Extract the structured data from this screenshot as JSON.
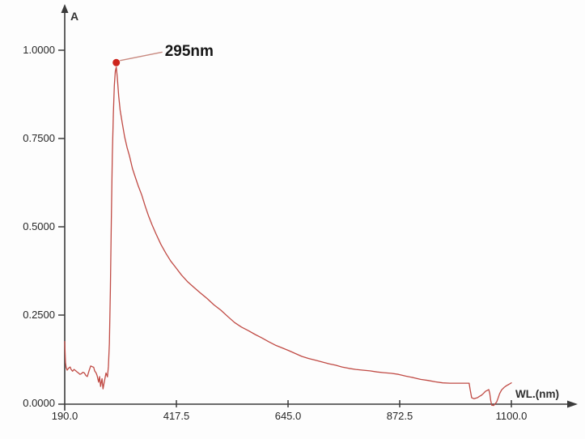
{
  "figure": {
    "background": "#fdfdfd",
    "colors": {
      "axis": "#3b3b3b",
      "tick_text": "#262626",
      "curve": "#c04a44",
      "marker": "#cd241c",
      "callout": "#c98a80"
    }
  },
  "chart_data": {
    "type": "line",
    "title": "",
    "xlabel": "WL.(nm)",
    "ylabel": "A",
    "xlim": [
      190.0,
      1100.0
    ],
    "ylim": [
      0.0,
      1.0
    ],
    "grid": false,
    "legend": false,
    "x_ticks": [
      {
        "wl": 190.0,
        "label": "190.0"
      },
      {
        "wl": 417.5,
        "label": "417.5"
      },
      {
        "wl": 645.0,
        "label": "645.0"
      },
      {
        "wl": 872.5,
        "label": "872.5"
      },
      {
        "wl": 1100.0,
        "label": "1100.0"
      }
    ],
    "y_ticks": [
      {
        "a": 0.0,
        "label": "0.0000"
      },
      {
        "a": 0.25,
        "label": "0.2500"
      },
      {
        "a": 0.5,
        "label": "0.5000"
      },
      {
        "a": 0.75,
        "label": "0.7500"
      },
      {
        "a": 1.0,
        "label": "1.0000"
      }
    ],
    "annotations": [
      {
        "text": "295nm",
        "wl": 295,
        "a": 0.965
      }
    ],
    "series": [
      {
        "name": "absorbance-trace",
        "points": [
          [
            190,
            0.175
          ],
          [
            191.5,
            0.115
          ],
          [
            193,
            0.101
          ],
          [
            195,
            0.094
          ],
          [
            198,
            0.1
          ],
          [
            201,
            0.103
          ],
          [
            203,
            0.096
          ],
          [
            206,
            0.091
          ],
          [
            209,
            0.096
          ],
          [
            212,
            0.093
          ],
          [
            215,
            0.089
          ],
          [
            218,
            0.086
          ],
          [
            221,
            0.082
          ],
          [
            224,
            0.084
          ],
          [
            227,
            0.088
          ],
          [
            230,
            0.086
          ],
          [
            233,
            0.079
          ],
          [
            236,
            0.076
          ],
          [
            238,
            0.085
          ],
          [
            240,
            0.094
          ],
          [
            243,
            0.106
          ],
          [
            246,
            0.104
          ],
          [
            249,
            0.102
          ],
          [
            251,
            0.092
          ],
          [
            254,
            0.086
          ],
          [
            256,
            0.079
          ],
          [
            259,
            0.06
          ],
          [
            261,
            0.076
          ],
          [
            263,
            0.048
          ],
          [
            266,
            0.07
          ],
          [
            268,
            0.041
          ],
          [
            271,
            0.063
          ],
          [
            274,
            0.086
          ],
          [
            277,
            0.075
          ],
          [
            279,
            0.105
          ],
          [
            281,
            0.17
          ],
          [
            283,
            0.32
          ],
          [
            285,
            0.52
          ],
          [
            287,
            0.7
          ],
          [
            289,
            0.82
          ],
          [
            291,
            0.9
          ],
          [
            293,
            0.94
          ],
          [
            295,
            0.952
          ],
          [
            297,
            0.925
          ],
          [
            300,
            0.87
          ],
          [
            303,
            0.83
          ],
          [
            307,
            0.795
          ],
          [
            312,
            0.755
          ],
          [
            317,
            0.725
          ],
          [
            322,
            0.7
          ],
          [
            328,
            0.665
          ],
          [
            334,
            0.64
          ],
          [
            340,
            0.615
          ],
          [
            347,
            0.59
          ],
          [
            354,
            0.558
          ],
          [
            361,
            0.53
          ],
          [
            368,
            0.505
          ],
          [
            376,
            0.48
          ],
          [
            386,
            0.45
          ],
          [
            396,
            0.425
          ],
          [
            406,
            0.403
          ],
          [
            416,
            0.385
          ],
          [
            428,
            0.363
          ],
          [
            440,
            0.345
          ],
          [
            452,
            0.33
          ],
          [
            466,
            0.313
          ],
          [
            480,
            0.297
          ],
          [
            494,
            0.279
          ],
          [
            508,
            0.264
          ],
          [
            522,
            0.246
          ],
          [
            536,
            0.229
          ],
          [
            550,
            0.216
          ],
          [
            564,
            0.206
          ],
          [
            578,
            0.195
          ],
          [
            591,
            0.186
          ],
          [
            605,
            0.175
          ],
          [
            619,
            0.165
          ],
          [
            633,
            0.157
          ],
          [
            647,
            0.149
          ],
          [
            660,
            0.141
          ],
          [
            673,
            0.133
          ],
          [
            687,
            0.127
          ],
          [
            701,
            0.122
          ],
          [
            715,
            0.117
          ],
          [
            729,
            0.112
          ],
          [
            742,
            0.108
          ],
          [
            755,
            0.103
          ],
          [
            769,
            0.099
          ],
          [
            783,
            0.096
          ],
          [
            797,
            0.094
          ],
          [
            812,
            0.092
          ],
          [
            826,
            0.089
          ],
          [
            840,
            0.087
          ],
          [
            855,
            0.085
          ],
          [
            870,
            0.082
          ],
          [
            885,
            0.077
          ],
          [
            900,
            0.073
          ],
          [
            915,
            0.068
          ],
          [
            930,
            0.065
          ],
          [
            945,
            0.061
          ],
          [
            960,
            0.058
          ],
          [
            975,
            0.057
          ],
          [
            990,
            0.057
          ],
          [
            1003,
            0.057
          ],
          [
            1014,
            0.057
          ],
          [
            1016,
            0.04
          ],
          [
            1019,
            0.016
          ],
          [
            1024,
            0.013
          ],
          [
            1028,
            0.015
          ],
          [
            1031,
            0.016
          ],
          [
            1035,
            0.02
          ],
          [
            1039,
            0.023
          ],
          [
            1043,
            0.028
          ],
          [
            1047,
            0.034
          ],
          [
            1051,
            0.037
          ],
          [
            1054,
            0.039
          ],
          [
            1056,
            0.028
          ],
          [
            1058,
            0.008
          ],
          [
            1060,
            -0.005
          ],
          [
            1064,
            -0.006
          ],
          [
            1067,
            -0.001
          ],
          [
            1070,
            0.004
          ],
          [
            1073,
            0.015
          ],
          [
            1076,
            0.027
          ],
          [
            1080,
            0.038
          ],
          [
            1085,
            0.045
          ],
          [
            1090,
            0.05
          ],
          [
            1095,
            0.054
          ],
          [
            1100,
            0.058
          ]
        ]
      }
    ]
  }
}
